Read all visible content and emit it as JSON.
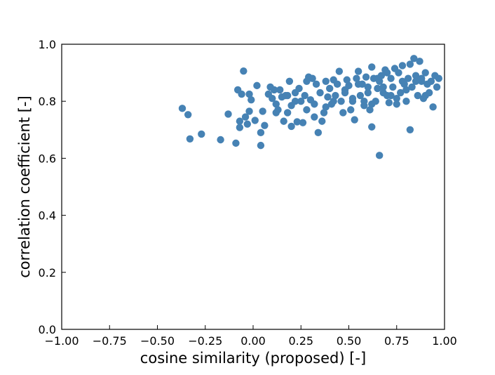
{
  "chart_data": {
    "type": "scatter",
    "xlabel": "cosine similarity (proposed) [-]",
    "ylabel": "correlation coefficient [-]",
    "xlim": [
      -1.0,
      1.0
    ],
    "ylim": [
      0.0,
      1.0
    ],
    "xticks": [
      "−1.00",
      "−0.75",
      "−0.50",
      "−0.25",
      "0.00",
      "0.25",
      "0.50",
      "0.75",
      "1.00"
    ],
    "xtick_values": [
      -1.0,
      -0.75,
      -0.5,
      -0.25,
      0.0,
      0.25,
      0.5,
      0.75,
      1.0
    ],
    "yticks": [
      "0.0",
      "0.2",
      "0.4",
      "0.6",
      "0.8",
      "1.0"
    ],
    "ytick_values": [
      0.0,
      0.2,
      0.4,
      0.6,
      0.8,
      1.0
    ],
    "grid": false,
    "marker_color": "#4682b4",
    "series": [
      {
        "x": [
          -0.37,
          -0.34,
          -0.33,
          -0.27,
          -0.17,
          -0.13,
          -0.09,
          -0.08,
          -0.07,
          -0.07,
          -0.06,
          -0.05,
          -0.04,
          -0.03,
          -0.02,
          -0.02,
          -0.01,
          0.01,
          0.02,
          0.04,
          0.04,
          0.05,
          0.06,
          0.08,
          0.09,
          0.1,
          0.11,
          0.12,
          0.13,
          0.14,
          0.15,
          0.16,
          0.17,
          0.18,
          0.19,
          0.2,
          0.2,
          0.22,
          0.23,
          0.24,
          0.25,
          0.26,
          0.27,
          0.28,
          0.29,
          0.3,
          0.31,
          0.32,
          0.33,
          0.34,
          0.35,
          0.36,
          0.37,
          0.38,
          0.39,
          0.4,
          0.41,
          0.42,
          0.43,
          0.44,
          0.45,
          0.46,
          0.47,
          0.48,
          0.49,
          0.5,
          0.51,
          0.52,
          0.53,
          0.54,
          0.55,
          0.56,
          0.57,
          0.58,
          0.59,
          0.6,
          0.61,
          0.62,
          0.62,
          0.63,
          0.64,
          0.65,
          0.66,
          0.66,
          0.67,
          0.68,
          0.69,
          0.7,
          0.71,
          0.72,
          0.73,
          0.74,
          0.75,
          0.76,
          0.77,
          0.78,
          0.79,
          0.8,
          0.81,
          0.82,
          0.82,
          0.83,
          0.84,
          0.85,
          0.86,
          0.87,
          0.88,
          0.89,
          0.9,
          0.91,
          0.92,
          0.93,
          0.94,
          0.95,
          0.96,
          0.97,
          0.55,
          0.6,
          0.7,
          0.8,
          0.85,
          0.9,
          0.75,
          0.65,
          0.58,
          0.68,
          0.78,
          0.88,
          0.72,
          0.62,
          0.52,
          0.48,
          0.42,
          0.38,
          0.32,
          0.28,
          0.22,
          0.18,
          0.12
        ],
        "y": [
          0.775,
          0.753,
          0.668,
          0.685,
          0.665,
          0.755,
          0.653,
          0.84,
          0.73,
          0.708,
          0.825,
          0.906,
          0.745,
          0.72,
          0.825,
          0.765,
          0.805,
          0.733,
          0.855,
          0.69,
          0.645,
          0.765,
          0.715,
          0.825,
          0.85,
          0.81,
          0.84,
          0.79,
          0.77,
          0.84,
          0.815,
          0.73,
          0.82,
          0.76,
          0.87,
          0.785,
          0.712,
          0.83,
          0.728,
          0.845,
          0.8,
          0.725,
          0.82,
          0.87,
          0.885,
          0.805,
          0.88,
          0.745,
          0.86,
          0.69,
          0.83,
          0.73,
          0.76,
          0.87,
          0.815,
          0.845,
          0.79,
          0.875,
          0.82,
          0.86,
          0.905,
          0.8,
          0.76,
          0.84,
          0.875,
          0.855,
          0.77,
          0.8,
          0.735,
          0.88,
          0.905,
          0.82,
          0.86,
          0.785,
          0.885,
          0.85,
          0.77,
          0.92,
          0.71,
          0.88,
          0.8,
          0.845,
          0.61,
          0.87,
          0.89,
          0.83,
          0.91,
          0.82,
          0.795,
          0.88,
          0.85,
          0.915,
          0.79,
          0.9,
          0.83,
          0.925,
          0.86,
          0.8,
          0.88,
          0.7,
          0.93,
          0.85,
          0.95,
          0.89,
          0.82,
          0.94,
          0.87,
          0.81,
          0.9,
          0.86,
          0.83,
          0.87,
          0.78,
          0.89,
          0.85,
          0.88,
          0.86,
          0.83,
          0.9,
          0.84,
          0.87,
          0.82,
          0.81,
          0.88,
          0.8,
          0.85,
          0.87,
          0.88,
          0.82,
          0.79,
          0.81,
          0.83,
          0.8,
          0.78,
          0.79,
          0.77,
          0.8,
          0.82,
          0.76
        ]
      }
    ]
  }
}
